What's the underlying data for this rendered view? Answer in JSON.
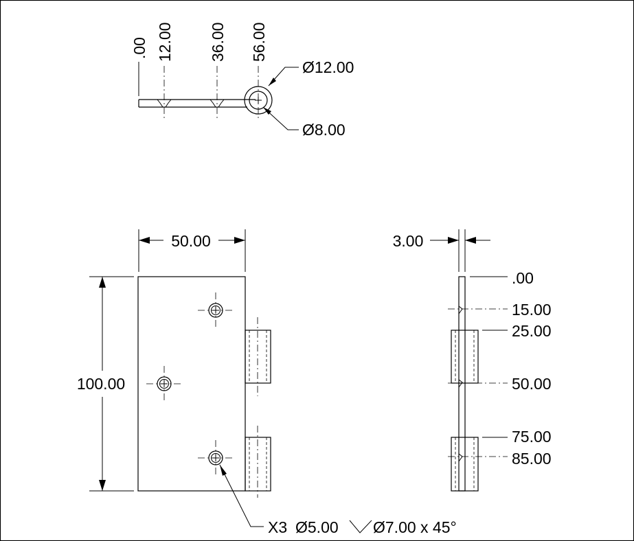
{
  "top_view": {
    "ordinates": [
      ".00",
      "12.00",
      "36.00",
      "56.00"
    ],
    "outer_diameter": "Ø12.00",
    "inner_diameter": "Ø8.00"
  },
  "front_view": {
    "width": "50.00",
    "height": "100.00"
  },
  "side_view": {
    "thickness": "3.00",
    "ordinates": [
      ".00",
      "15.00",
      "25.00",
      "50.00",
      "75.00",
      "85.00"
    ]
  },
  "hole_callout": {
    "count": "X3",
    "hole_diameter": "Ø5.00",
    "countersink": "Ø7.00 x 45°"
  }
}
